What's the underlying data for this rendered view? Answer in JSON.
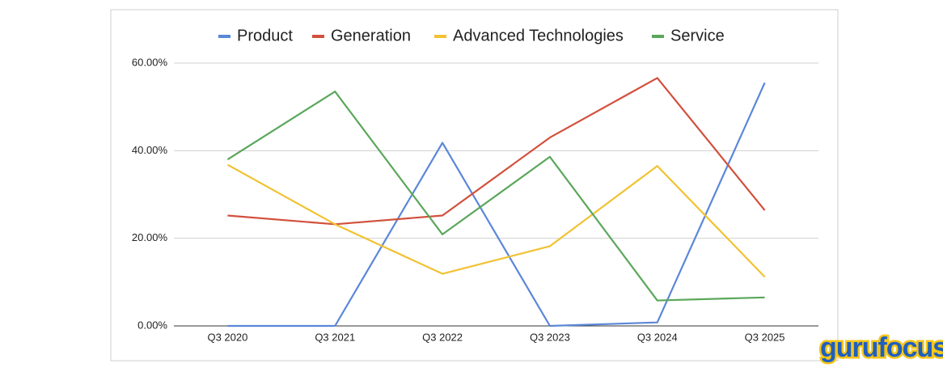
{
  "chart_data": {
    "type": "line",
    "categories": [
      "Q3 2020",
      "Q3 2021",
      "Q3 2022",
      "Q3 2023",
      "Q3 2024",
      "Q3 2025"
    ],
    "series": [
      {
        "name": "Product",
        "color": "#5b87d9",
        "values": [
          0,
          0,
          41.8,
          0,
          0.8,
          55.5
        ]
      },
      {
        "name": "Generation",
        "color": "#d2503c",
        "values": [
          25.2,
          23.2,
          25.2,
          43.0,
          56.6,
          26.4
        ]
      },
      {
        "name": "Advanced Technologies",
        "color": "#f1c232",
        "values": [
          36.8,
          23.2,
          11.9,
          18.2,
          36.5,
          11.2
        ]
      },
      {
        "name": "Service",
        "color": "#5aa75b",
        "values": [
          38.0,
          53.5,
          20.9,
          38.6,
          5.8,
          6.5
        ]
      }
    ],
    "ylim": [
      0,
      60
    ],
    "yticks": [
      {
        "value": 0,
        "label": "0.00%"
      },
      {
        "value": 20,
        "label": "20.00%"
      },
      {
        "value": 40,
        "label": "40.00%"
      },
      {
        "value": 60,
        "label": "60.00%"
      }
    ],
    "grid": true,
    "legend": "top"
  },
  "watermark": "gurufocus"
}
